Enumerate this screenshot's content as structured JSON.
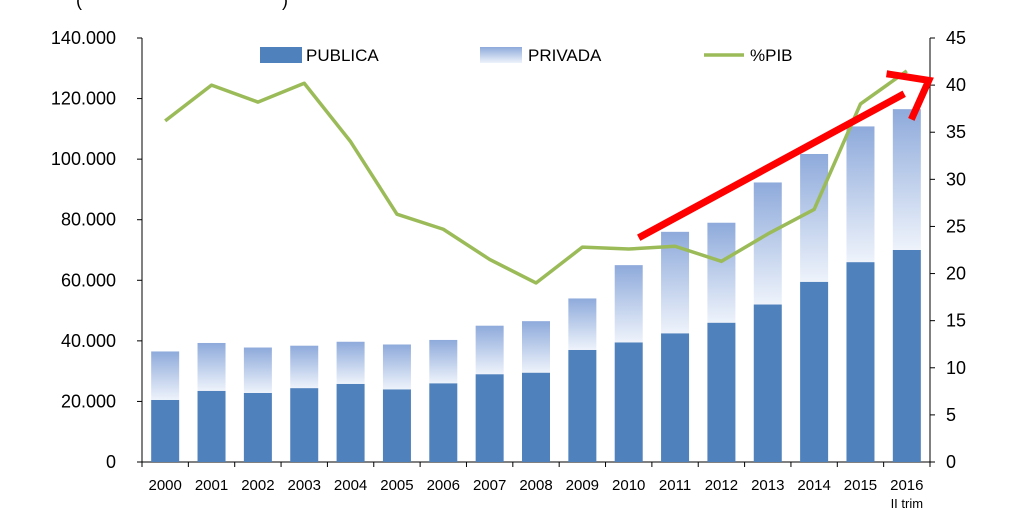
{
  "chart_data": {
    "type": "bar",
    "top_fragment": "(",
    "top_fragment_right": ")",
    "categories": [
      "2000",
      "2001",
      "2002",
      "2003",
      "2004",
      "2005",
      "2006",
      "2007",
      "2008",
      "2009",
      "2010",
      "2011",
      "2012",
      "2013",
      "2014",
      "2015",
      "2016"
    ],
    "category_sublabels": {
      "2016": "II trim"
    },
    "series": [
      {
        "name": "PUBLICA",
        "kind": "bar-stacked",
        "axis": "left",
        "color": "#4f81bd",
        "values": [
          20500,
          23500,
          22800,
          24400,
          25800,
          24000,
          26000,
          29000,
          29500,
          37000,
          39500,
          42500,
          46000,
          52000,
          59500,
          66000,
          70000
        ]
      },
      {
        "name": "PRIVADA",
        "kind": "bar-stacked",
        "axis": "left",
        "color_top": "#8eaadb",
        "color_bottom": "#eef3fb",
        "values": [
          16000,
          15800,
          15000,
          14000,
          13900,
          14800,
          14300,
          16000,
          17000,
          17000,
          25500,
          33500,
          33000,
          40300,
          42200,
          44800,
          46500
        ]
      },
      {
        "name": "%PIB",
        "kind": "line",
        "axis": "right",
        "color": "#9bbb59",
        "values": [
          36.2,
          40.0,
          38.2,
          40.2,
          34.0,
          26.3,
          24.7,
          21.5,
          19.0,
          22.8,
          22.6,
          22.9,
          21.3,
          24.2,
          26.8,
          38.0,
          41.5
        ]
      }
    ],
    "y_left": {
      "min": 0,
      "max": 140000,
      "ticks": [
        "0",
        "20.000",
        "40.000",
        "60.000",
        "80.000",
        "100.000",
        "120.000",
        "140.000"
      ]
    },
    "y_right": {
      "min": 0,
      "max": 45,
      "ticks": [
        "0",
        "5",
        "10",
        "15",
        "20",
        "25",
        "30",
        "35",
        "40",
        "45"
      ]
    },
    "legend": [
      "PUBLICA",
      "PRIVADA",
      "%PIB"
    ],
    "annotation": {
      "type": "arrow",
      "color": "#ff0000",
      "from": {
        "category": "2010",
        "right_value": 23.8
      },
      "to": {
        "category": "2016",
        "right_value": 40.5
      }
    }
  }
}
